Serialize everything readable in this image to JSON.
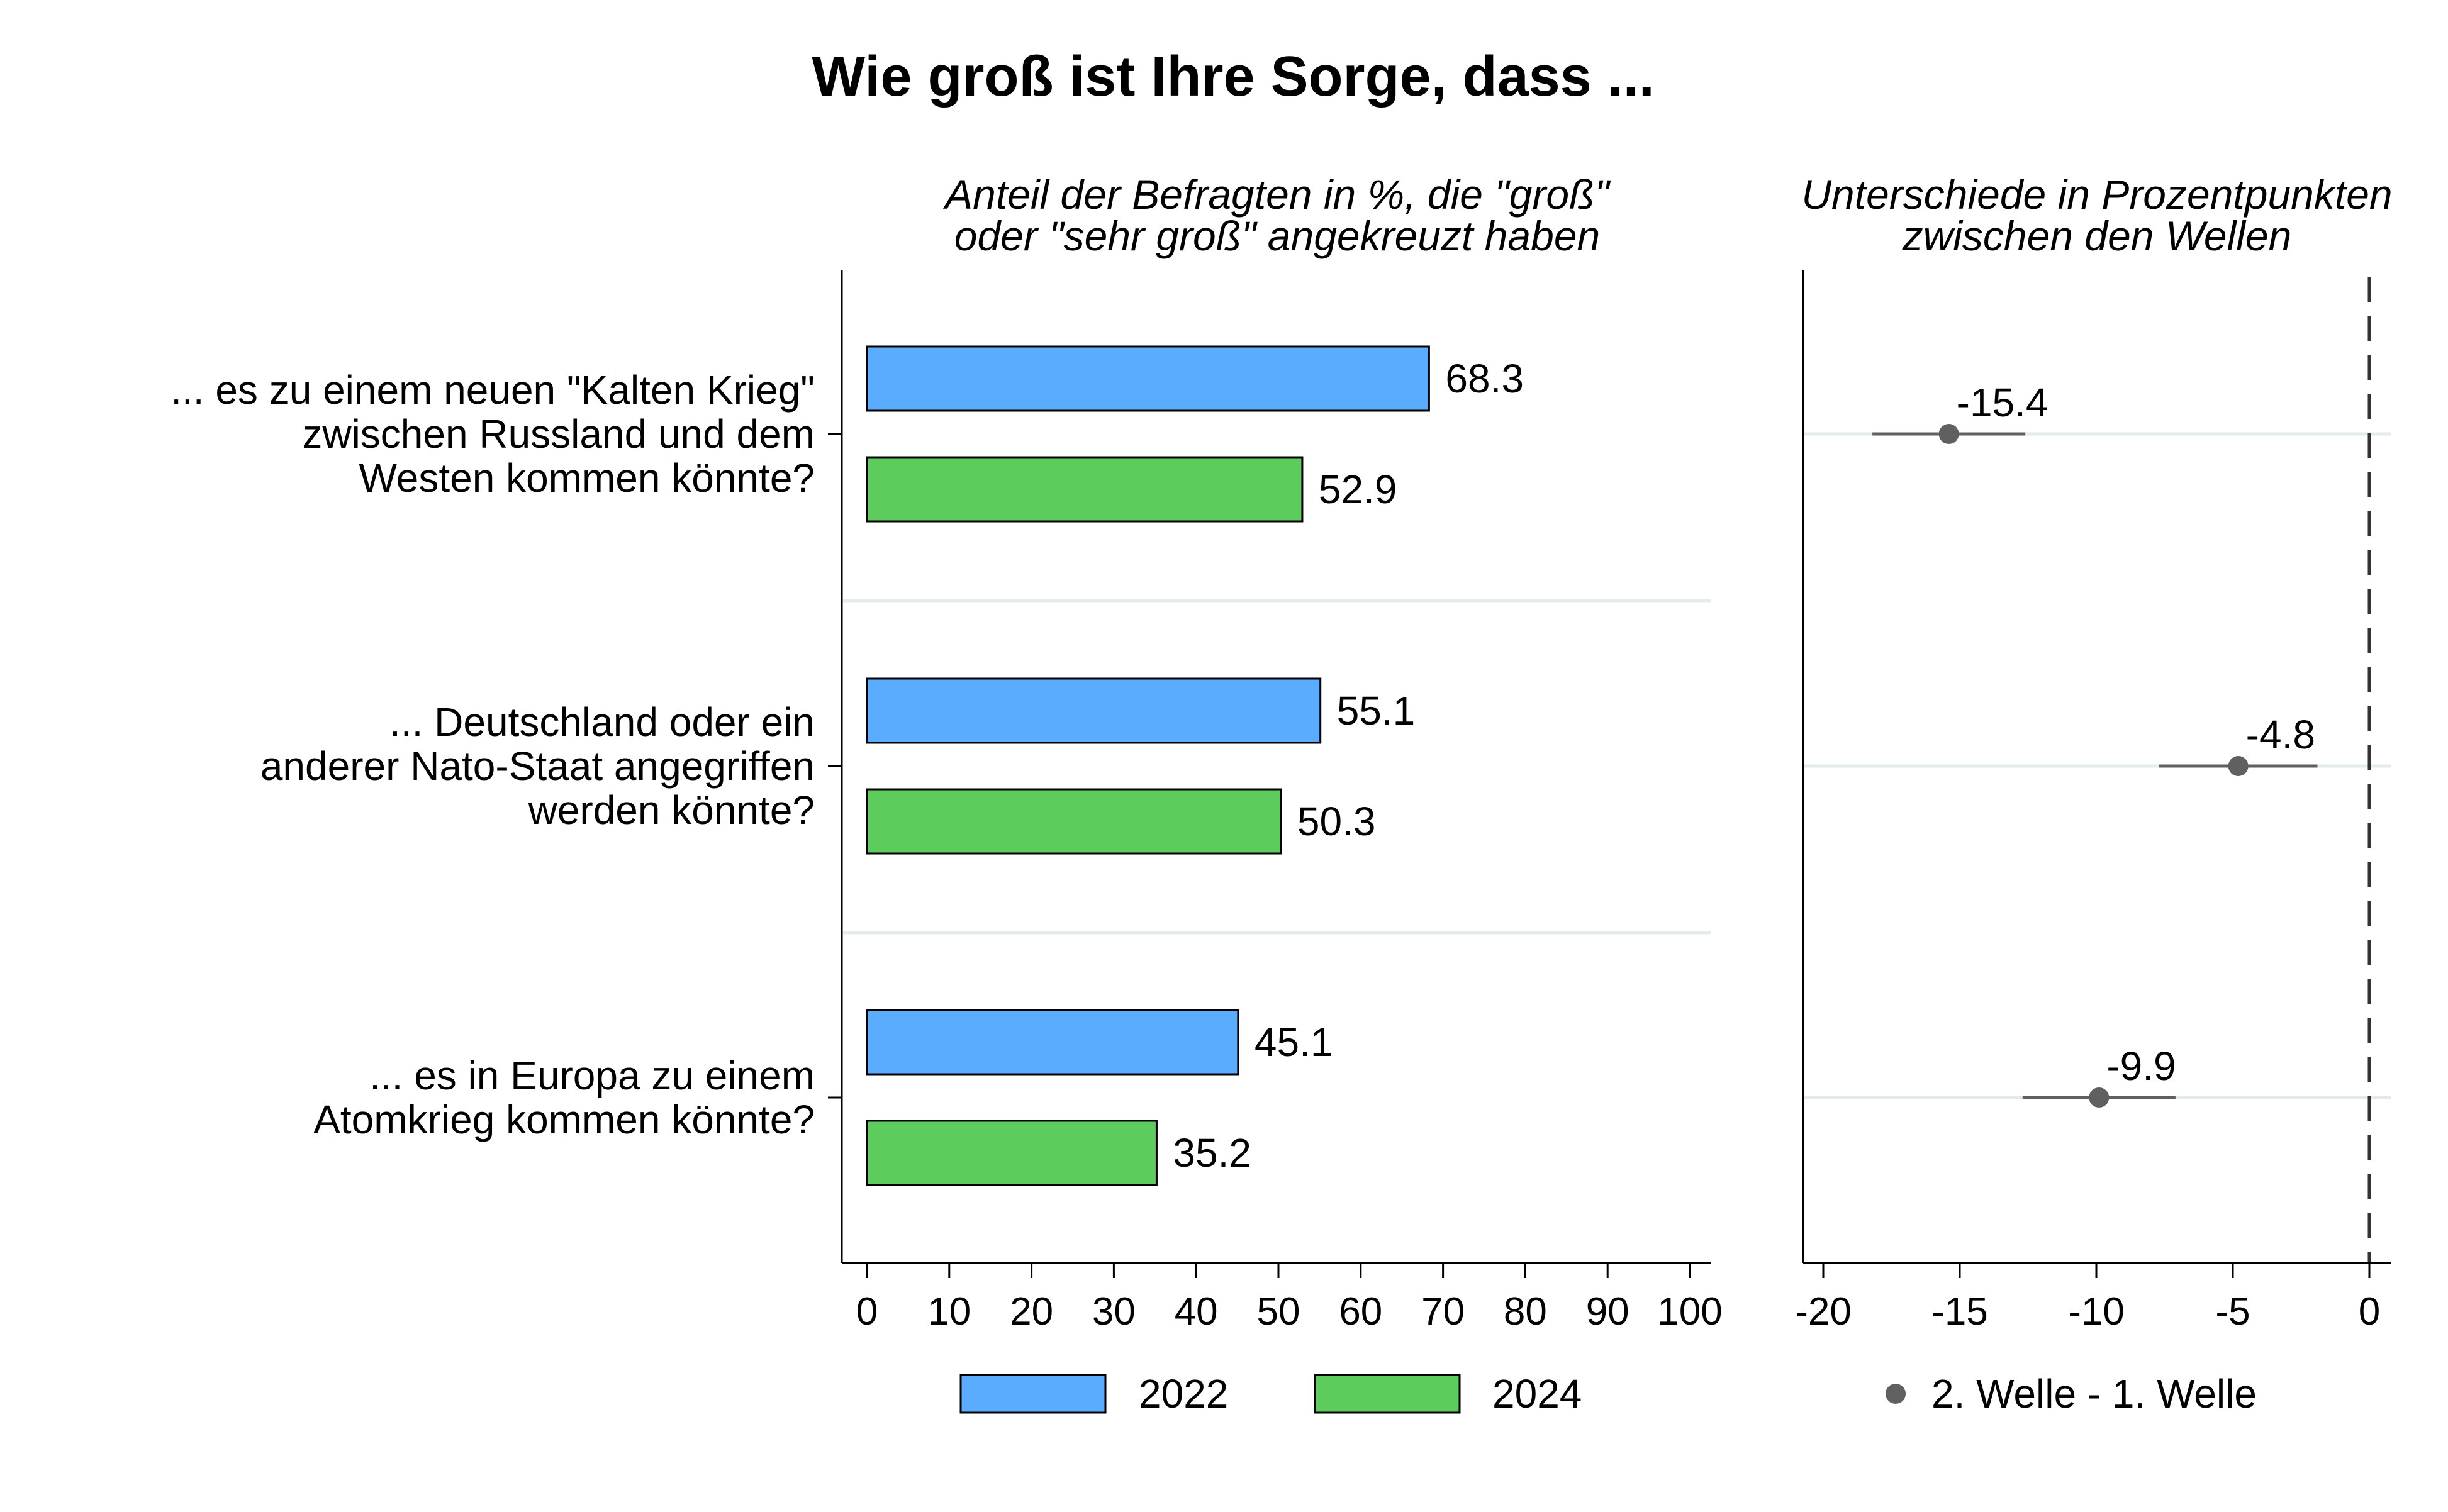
{
  "chart_data": {
    "title": "Wie groß ist Ihre Sorge, dass ...",
    "panels": [
      {
        "type": "bar",
        "orientation": "horizontal",
        "subtitle": [
          "Anteil der Befragten in %, die \"groß\"",
          "oder \"sehr groß\" angekreuzt haben"
        ],
        "categories": [
          [
            "... es zu einem neuen \"Kalten Krieg\"",
            "zwischen Russland und dem",
            "Westen kommen könnte?"
          ],
          [
            "... Deutschland oder ein",
            "anderer Nato-Staat angegriffen",
            "werden könnte?"
          ],
          [
            "... es in Europa zu einem",
            "Atomkrieg kommen könnte?"
          ]
        ],
        "series": [
          {
            "name": "2022",
            "color": "#5aacff",
            "values": [
              68.3,
              55.1,
              45.1
            ],
            "labels": [
              "68.3",
              "55.1",
              "45.1"
            ]
          },
          {
            "name": "2024",
            "color": "#5ccc5c",
            "values": [
              52.9,
              50.3,
              35.2
            ],
            "labels": [
              "52.9",
              "50.3",
              "35.2"
            ]
          }
        ],
        "xlim": [
          0,
          100
        ],
        "xticks": [
          0,
          10,
          20,
          30,
          40,
          50,
          60,
          70,
          80,
          90,
          100
        ],
        "xtick_labels": [
          "0",
          "10",
          "20",
          "30",
          "40",
          "50",
          "60",
          "70",
          "80",
          "90",
          "100"
        ],
        "legend_position": "bottom"
      },
      {
        "type": "scatter",
        "subtitle": [
          "Unterschiede in Prozentpunkten",
          "zwischen den Wellen"
        ],
        "series_name": "2. Welle - 1. Welle",
        "point_color": "#606060",
        "values": [
          -15.4,
          -4.8,
          -9.9
        ],
        "labels": [
          "-15.4",
          "-4.8",
          "-9.9"
        ],
        "ci_low": [
          -18.2,
          -7.7,
          -12.7
        ],
        "ci_high": [
          -12.6,
          -1.9,
          -7.1
        ],
        "xlim": [
          -20,
          0
        ],
        "xticks": [
          -20,
          -15,
          -10,
          -5,
          0
        ],
        "xtick_labels": [
          "-20",
          "-15",
          "-10",
          "-5",
          "0"
        ],
        "reference_line": 0,
        "legend_position": "bottom"
      }
    ]
  }
}
